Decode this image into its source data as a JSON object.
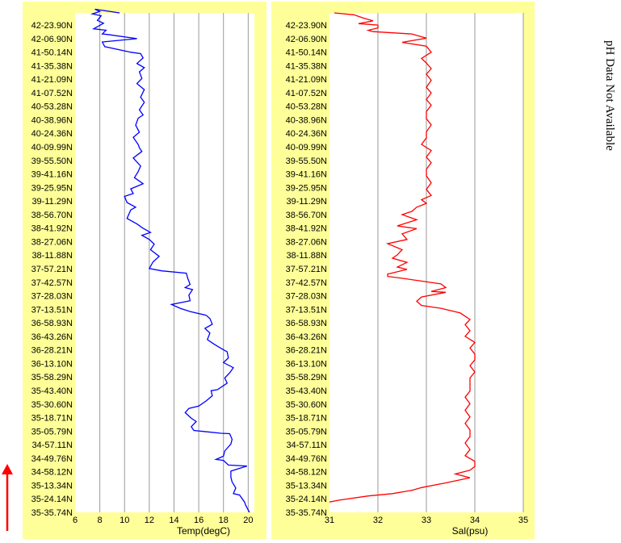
{
  "side_note": "pH Data Not Available",
  "colors": {
    "panel": "#ffff99",
    "background": "#ffffff",
    "grid": "#9a9a9a",
    "temp": "#0000ff",
    "sal": "#ff0000",
    "arrow": "#ff0000"
  },
  "chart_data": [
    {
      "type": "line",
      "xlabel": "Temp(degC)",
      "xlim": [
        6,
        20.5
      ],
      "xticks": [
        6,
        8,
        10,
        12,
        14,
        16,
        18,
        20
      ],
      "ylabel": "",
      "lat_labels": [
        "42-23.90N",
        "42-06.90N",
        "41-50.14N",
        "41-35.38N",
        "41-21.09N",
        "41-07.52N",
        "40-53.28N",
        "40-38.96N",
        "40-24.36N",
        "40-09.99N",
        "39-55.50N",
        "39-41.16N",
        "39-25.95N",
        "39-11.29N",
        "38-56.70N",
        "38-41.92N",
        "38-27.06N",
        "38-11.88N",
        "37-57.21N",
        "37-42.57N",
        "37-28.03N",
        "37-13.51N",
        "36-58.93N",
        "36-43.26N",
        "36-28.21N",
        "36-13.10N",
        "35-58.29N",
        "35-43.40N",
        "35-30.60N",
        "35-18.71N",
        "35-05.79N",
        "34-57.11N",
        "34-49.76N",
        "34-58.12N",
        "35-13.34N",
        "35-24.14N",
        "35-35.74N"
      ],
      "grid": true,
      "series": [
        {
          "points": [
            [
              9.6,
              41.9
            ],
            [
              7.6,
              41.1
            ],
            [
              8.0,
              41.6
            ],
            [
              7.4,
              42.1
            ],
            [
              8.1,
              42.5
            ],
            [
              7.8,
              43.5
            ],
            [
              8.3,
              44.1
            ],
            [
              7.5,
              45.3
            ],
            [
              8.5,
              45.6
            ],
            [
              8.2,
              46.4
            ],
            [
              8.6,
              46.5
            ],
            [
              11.0,
              47.4
            ],
            [
              8.2,
              48.1
            ],
            [
              8.4,
              49.1
            ],
            [
              10.5,
              50.3
            ],
            [
              11.3,
              50.6
            ],
            [
              11.5,
              51.5
            ],
            [
              11.0,
              52.7
            ],
            [
              11.6,
              53.6
            ],
            [
              11.2,
              54.5
            ],
            [
              11.4,
              55.9
            ],
            [
              11.0,
              57.0
            ],
            [
              11.6,
              58.3
            ],
            [
              11.3,
              59.9
            ],
            [
              11.6,
              61.0
            ],
            [
              11.2,
              62.6
            ],
            [
              11.5,
              63.7
            ],
            [
              11.1,
              64.4
            ],
            [
              10.9,
              65.9
            ],
            [
              11.2,
              67.4
            ],
            [
              10.7,
              68.5
            ],
            [
              11.1,
              70.0
            ],
            [
              11.2,
              70.7
            ],
            [
              11.4,
              71.5
            ],
            [
              10.7,
              72.9
            ],
            [
              11.3,
              74.6
            ],
            [
              11.1,
              75.8
            ],
            [
              10.8,
              77.1
            ],
            [
              11.5,
              78.4
            ],
            [
              10.5,
              79.5
            ],
            [
              10.7,
              80.5
            ],
            [
              10.0,
              81.1
            ],
            [
              10.2,
              82.4
            ],
            [
              10.9,
              83.4
            ],
            [
              10.5,
              84.0
            ],
            [
              10.2,
              85.8
            ],
            [
              11.0,
              87.0
            ],
            [
              11.5,
              87.9
            ],
            [
              12.1,
              88.8
            ],
            [
              11.4,
              89.4
            ],
            [
              12.0,
              90.3
            ],
            [
              12.4,
              91.3
            ],
            [
              12.1,
              92.5
            ],
            [
              12.8,
              93.9
            ],
            [
              12.3,
              95.1
            ],
            [
              12.0,
              96.5
            ],
            [
              13.0,
              97.0
            ],
            [
              15.0,
              97.5
            ],
            [
              15.1,
              98.5
            ],
            [
              15.3,
              99.9
            ],
            [
              14.9,
              100.6
            ],
            [
              15.5,
              101.0
            ],
            [
              15.2,
              102.2
            ],
            [
              15.3,
              103.4
            ],
            [
              13.8,
              104.2
            ],
            [
              14.5,
              105.0
            ],
            [
              15.3,
              105.7
            ],
            [
              16.6,
              106.5
            ],
            [
              16.9,
              107.2
            ],
            [
              17.1,
              108.4
            ],
            [
              16.5,
              109.3
            ],
            [
              16.9,
              110.3
            ],
            [
              16.7,
              111.7
            ],
            [
              17.2,
              112.6
            ],
            [
              17.7,
              113.4
            ],
            [
              18.3,
              114.3
            ],
            [
              18.4,
              115.6
            ],
            [
              18.0,
              116.6
            ],
            [
              18.8,
              117.7
            ],
            [
              18.5,
              118.8
            ],
            [
              18.1,
              119.9
            ],
            [
              18.3,
              121.0
            ],
            [
              17.5,
              122.4
            ],
            [
              17.0,
              122.6
            ],
            [
              17.1,
              123.7
            ],
            [
              16.6,
              124.8
            ],
            [
              16.0,
              125.9
            ],
            [
              15.2,
              126.4
            ],
            [
              14.9,
              127.3
            ],
            [
              15.4,
              128.5
            ],
            [
              15.8,
              129.2
            ],
            [
              15.4,
              130.3
            ],
            [
              15.6,
              131.1
            ],
            [
              17.8,
              131.7
            ],
            [
              18.5,
              131.8
            ],
            [
              18.7,
              133.0
            ],
            [
              18.6,
              134.0
            ],
            [
              18.1,
              135.5
            ],
            [
              18.0,
              136.6
            ],
            [
              17.4,
              137.3
            ],
            [
              18.0,
              137.5
            ],
            [
              18.4,
              138.5
            ],
            [
              19.9,
              138.7
            ],
            [
              18.6,
              139.8
            ],
            [
              18.6,
              141.1
            ],
            [
              18.7,
              142.1
            ],
            [
              19.0,
              143.4
            ],
            [
              18.8,
              144.6
            ],
            [
              19.3,
              144.9
            ],
            [
              19.7,
              146.4
            ],
            [
              19.8,
              147.1
            ],
            [
              20.1,
              148.6
            ]
          ]
        }
      ]
    },
    {
      "type": "line",
      "xlabel": "Sal(psu)",
      "xlim": [
        31,
        35
      ],
      "xticks": [
        31,
        32,
        33,
        34,
        35
      ],
      "ylabel": "",
      "lat_labels": [
        "42-23.90N",
        "42-06.90N",
        "41-50.14N",
        "41-35.38N",
        "41-21.09N",
        "41-07.52N",
        "40-53.28N",
        "40-38.96N",
        "40-24.36N",
        "40-09.99N",
        "39-55.50N",
        "39-41.16N",
        "39-25.95N",
        "39-11.29N",
        "38-56.70N",
        "38-41.92N",
        "38-27.06N",
        "38-11.88N",
        "37-57.21N",
        "37-42.57N",
        "37-28.03N",
        "37-13.51N",
        "36-58.93N",
        "36-43.26N",
        "36-28.21N",
        "36-13.10N",
        "35-58.29N",
        "35-43.40N",
        "35-30.60N",
        "35-18.71N",
        "35-05.79N",
        "34-57.11N",
        "34-49.76N",
        "34-58.12N",
        "35-13.34N",
        "35-24.14N",
        "35-35.74N"
      ],
      "grid": true,
      "series": [
        {
          "points": [
            [
              31.1,
              41.9
            ],
            [
              31.5,
              42.3
            ],
            [
              31.7,
              43.0
            ],
            [
              31.9,
              43.6
            ],
            [
              31.6,
              44.2
            ],
            [
              32.0,
              44.5
            ],
            [
              32.0,
              45.1
            ],
            [
              31.8,
              45.6
            ],
            [
              31.9,
              45.9
            ],
            [
              32.7,
              46.4
            ],
            [
              33.0,
              47.3
            ],
            [
              32.5,
              48.2
            ],
            [
              33.0,
              49.0
            ],
            [
              33.1,
              50.3
            ],
            [
              32.9,
              51.6
            ],
            [
              33.0,
              52.6
            ],
            [
              33.1,
              53.8
            ],
            [
              33.0,
              55.0
            ],
            [
              33.1,
              56.3
            ],
            [
              33.0,
              57.8
            ],
            [
              33.1,
              59.0
            ],
            [
              33.0,
              60.4
            ],
            [
              33.1,
              61.6
            ],
            [
              33.0,
              63.0
            ],
            [
              33.0,
              64.5
            ],
            [
              33.1,
              65.8
            ],
            [
              33.0,
              67.3
            ],
            [
              33.0,
              68.6
            ],
            [
              32.9,
              70.0
            ],
            [
              33.1,
              71.3
            ],
            [
              33.0,
              72.7
            ],
            [
              33.1,
              73.9
            ],
            [
              33.0,
              75.3
            ],
            [
              33.0,
              76.7
            ],
            [
              33.1,
              78.2
            ],
            [
              33.0,
              79.6
            ],
            [
              33.1,
              80.9
            ],
            [
              32.9,
              81.8
            ],
            [
              33.0,
              82.6
            ],
            [
              32.8,
              83.4
            ],
            [
              32.7,
              84.3
            ],
            [
              32.5,
              85.0
            ],
            [
              32.8,
              86.1
            ],
            [
              32.4,
              87.4
            ],
            [
              32.8,
              88.0
            ],
            [
              32.5,
              89.1
            ],
            [
              32.6,
              90.3
            ],
            [
              32.2,
              91.2
            ],
            [
              32.5,
              92.5
            ],
            [
              32.4,
              93.6
            ],
            [
              32.3,
              94.3
            ],
            [
              32.6,
              95.2
            ],
            [
              32.4,
              96.2
            ],
            [
              32.6,
              96.7
            ],
            [
              32.2,
              97.7
            ],
            [
              32.2,
              98.2
            ],
            [
              32.5,
              98.6
            ],
            [
              32.9,
              99.2
            ],
            [
              33.3,
              99.8
            ],
            [
              33.4,
              100.6
            ],
            [
              33.1,
              101.4
            ],
            [
              33.4,
              101.6
            ],
            [
              32.9,
              102.6
            ],
            [
              32.8,
              103.5
            ],
            [
              32.9,
              104.4
            ],
            [
              33.3,
              105.0
            ],
            [
              33.7,
              106.0
            ],
            [
              33.9,
              107.4
            ],
            [
              33.8,
              108.5
            ],
            [
              33.9,
              109.8
            ],
            [
              33.8,
              111.0
            ],
            [
              34.0,
              112.3
            ],
            [
              33.9,
              113.5
            ],
            [
              34.0,
              114.8
            ],
            [
              34.0,
              116.0
            ],
            [
              33.9,
              117.3
            ],
            [
              34.0,
              118.6
            ],
            [
              33.9,
              119.9
            ],
            [
              33.9,
              121.3
            ],
            [
              33.9,
              122.7
            ],
            [
              33.8,
              124.0
            ],
            [
              33.9,
              125.4
            ],
            [
              33.8,
              126.8
            ],
            [
              33.9,
              128.2
            ],
            [
              33.8,
              129.6
            ],
            [
              33.9,
              131.0
            ],
            [
              33.9,
              132.4
            ],
            [
              33.8,
              133.8
            ],
            [
              33.9,
              135.2
            ],
            [
              33.8,
              136.5
            ],
            [
              34.0,
              137.7
            ],
            [
              34.0,
              138.8
            ],
            [
              33.9,
              139.6
            ],
            [
              33.6,
              140.4
            ],
            [
              33.9,
              141.2
            ],
            [
              33.4,
              142.3
            ],
            [
              32.9,
              143.3
            ],
            [
              32.7,
              143.9
            ],
            [
              32.3,
              144.6
            ],
            [
              31.8,
              145.1
            ],
            [
              31.2,
              146.0
            ],
            [
              31.0,
              146.4
            ]
          ]
        }
      ]
    }
  ]
}
